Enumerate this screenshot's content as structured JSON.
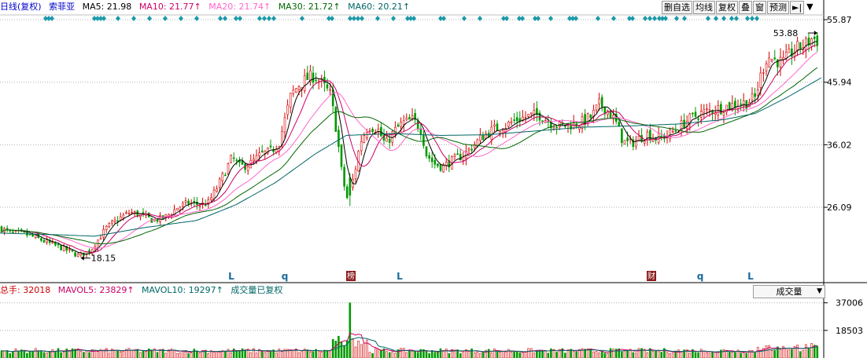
{
  "header": {
    "period_label": "日线(复权)",
    "stock_name": "索菲亚",
    "ma": [
      {
        "label": "MA5: 21.98",
        "color": "#000000"
      },
      {
        "label": "MA10: 21.77↑",
        "color": "#cc0066"
      },
      {
        "label": "MA20: 21.74↑",
        "color": "#ff66cc"
      },
      {
        "label": "MA30: 21.72↑",
        "color": "#006600"
      },
      {
        "label": "MA60: 20.21↑",
        "color": "#006666"
      }
    ]
  },
  "toolbar": {
    "buttons": [
      "删自选",
      "均线",
      "复权",
      "叠",
      "窗",
      "预测"
    ],
    "nav_icon": "►|",
    "dropdown_icon": "▼"
  },
  "volume_panel": {
    "total": "总手: 32018",
    "mavol5": "MAVOL5: 23829↑",
    "mavol10": "MAVOL10: 19297↑",
    "note": "成交量已复权",
    "selector": "成交量",
    "selector_arrow": "▼"
  },
  "colors": {
    "up": "#d40000",
    "down": "#009900",
    "ma5": "#000000",
    "ma10": "#cc0066",
    "ma20": "#ff66cc",
    "ma30": "#006600",
    "ma60": "#006666",
    "marker": "#1a9aaa",
    "grid": "#b0b0b0"
  },
  "chart_data": [
    {
      "type": "candlestick",
      "y_ticks": [
        "55.87",
        "45.94",
        "36.02",
        "26.09"
      ],
      "y_tick_values": [
        55.87,
        45.94,
        36.02,
        26.09
      ],
      "ylim": [
        16.0,
        56.5
      ],
      "high_label": "53.88",
      "low_label": "18.15",
      "high": 53.88,
      "low": 18.15,
      "bottom_markers": [
        "L",
        "q",
        "榜",
        "L",
        "财",
        "q",
        "L"
      ],
      "price_path": [
        [
          0,
          22.8
        ],
        [
          15,
          22.0
        ],
        [
          30,
          21.9
        ],
        [
          45,
          21.3
        ],
        [
          60,
          20.5
        ],
        [
          75,
          19.8
        ],
        [
          90,
          19.0
        ],
        [
          100,
          18.4
        ],
        [
          115,
          19.2
        ],
        [
          125,
          21.0
        ],
        [
          135,
          22.8
        ],
        [
          150,
          24.2
        ],
        [
          165,
          25.3
        ],
        [
          180,
          24.8
        ],
        [
          195,
          24.0
        ],
        [
          210,
          24.5
        ],
        [
          225,
          26.0
        ],
        [
          240,
          26.8
        ],
        [
          255,
          26.5
        ],
        [
          265,
          26.8
        ],
        [
          275,
          29.0
        ],
        [
          285,
          31.5
        ],
        [
          295,
          34.0
        ],
        [
          305,
          32.5
        ],
        [
          318,
          33.0
        ],
        [
          332,
          34.5
        ],
        [
          345,
          35.0
        ],
        [
          355,
          36.5
        ],
        [
          362,
          40.0
        ],
        [
          370,
          44.0
        ],
        [
          380,
          45.5
        ],
        [
          390,
          46.5
        ],
        [
          400,
          47.0
        ],
        [
          410,
          45.5
        ],
        [
          420,
          44.0
        ],
        [
          428,
          38.0
        ],
        [
          435,
          31.0
        ],
        [
          441,
          27.5
        ],
        [
          450,
          31.0
        ],
        [
          458,
          36.5
        ],
        [
          468,
          39.0
        ],
        [
          480,
          38.5
        ],
        [
          490,
          36.0
        ],
        [
          500,
          38.0
        ],
        [
          512,
          39.5
        ],
        [
          525,
          40.0
        ],
        [
          535,
          38.5
        ],
        [
          542,
          34.5
        ],
        [
          552,
          33.0
        ],
        [
          562,
          32.5
        ],
        [
          575,
          33.5
        ],
        [
          590,
          34.5
        ],
        [
          602,
          36.0
        ],
        [
          615,
          37.5
        ],
        [
          628,
          38.5
        ],
        [
          642,
          39.0
        ],
        [
          656,
          40.0
        ],
        [
          670,
          40.5
        ],
        [
          685,
          40.8
        ],
        [
          700,
          39.5
        ],
        [
          712,
          39.0
        ],
        [
          725,
          39.2
        ],
        [
          738,
          39.5
        ],
        [
          752,
          40.5
        ],
        [
          762,
          42.5
        ],
        [
          772,
          41.5
        ],
        [
          782,
          39.8
        ],
        [
          792,
          36.5
        ],
        [
          802,
          36.2
        ],
        [
          812,
          37.0
        ],
        [
          822,
          37.8
        ],
        [
          835,
          37.0
        ],
        [
          848,
          37.5
        ],
        [
          860,
          38.5
        ],
        [
          875,
          40.0
        ],
        [
          890,
          41.0
        ],
        [
          905,
          41.5
        ],
        [
          920,
          42.0
        ],
        [
          935,
          42.5
        ],
        [
          950,
          42.8
        ],
        [
          960,
          43.5
        ],
        [
          968,
          47.5
        ],
        [
          975,
          50.0
        ],
        [
          985,
          49.5
        ],
        [
          995,
          49.0
        ],
        [
          1005,
          50.5
        ],
        [
          1015,
          51.5
        ],
        [
          1025,
          52.0
        ],
        [
          1033,
          53.0
        ],
        [
          1040,
          52.5
        ],
        [
          1046,
          51.8
        ]
      ],
      "ma60_path": [
        [
          0,
          22.0
        ],
        [
          80,
          21.7
        ],
        [
          120,
          21.5
        ],
        [
          180,
          22.8
        ],
        [
          250,
          24.0
        ],
        [
          300,
          26.5
        ],
        [
          350,
          30.0
        ],
        [
          400,
          34.5
        ],
        [
          440,
          37.5
        ],
        [
          500,
          37.8
        ],
        [
          560,
          37.5
        ],
        [
          620,
          37.6
        ],
        [
          680,
          38.2
        ],
        [
          740,
          38.8
        ],
        [
          800,
          39.0
        ],
        [
          860,
          39.3
        ],
        [
          920,
          40.0
        ],
        [
          960,
          41.0
        ],
        [
          1000,
          43.5
        ],
        [
          1046,
          46.8
        ]
      ]
    },
    {
      "type": "bar",
      "name": "成交量",
      "y_ticks": [
        "37006",
        "18503"
      ],
      "y_tick_values": [
        37006,
        18503
      ],
      "ylim": [
        0,
        40000
      ],
      "peak_x": 441,
      "peak": 37006
    }
  ]
}
